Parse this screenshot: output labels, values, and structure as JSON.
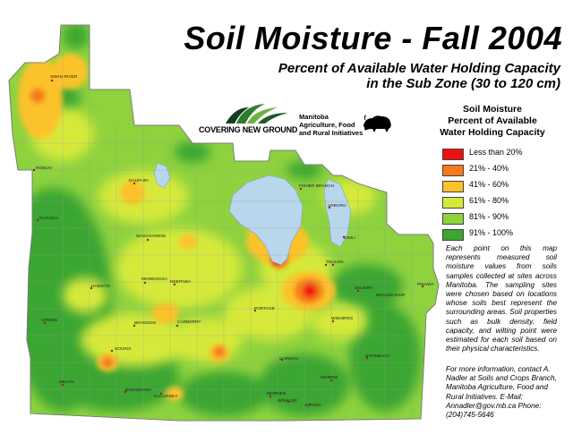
{
  "title": "Soil Moisture - Fall 2004",
  "subtitle_line1": "Percent of Available Water Holding Capacity",
  "subtitle_line2": "in the Sub Zone (30 to 120 cm)",
  "logos": {
    "covering_new_ground": "COVERING NEW GROUND",
    "manitoba_line1": "Manitoba",
    "manitoba_line2": "Agriculture, Food",
    "manitoba_line3": "and Rural Initiatives"
  },
  "legend": {
    "title_line1": "Soil Moisture",
    "title_line2": "Percent of Available",
    "title_line3": "Water Holding Capacity",
    "items": [
      {
        "label": "Less than 20%",
        "color": "#ee1111"
      },
      {
        "label": "21% - 40%",
        "color": "#f47a1c"
      },
      {
        "label": "41% - 60%",
        "color": "#fcc22a"
      },
      {
        "label": "61% - 80%",
        "color": "#d6e93a"
      },
      {
        "label": "81% - 90%",
        "color": "#8ed23e"
      },
      {
        "label": "91% - 100%",
        "color": "#3ba630"
      }
    ]
  },
  "note": "Each point on this map represents measured soil moisture values from soils samples collected at sites across Manitoba. The sampling sites were chosen based on locations whose soils best represent the surrounding areas. Soil properties such as bulk density, field capacity, and wilting point were estimated for each soil based on their physical characteristics.",
  "contact": "For more information, contact A. Nadler at Soils and Crops Branch, Manitoba Agriculture, Food and Rural Initiatives. E-Mail: Annadler@gov.mb.ca Phone: (204)745-5646",
  "towns": {
    "swan_river": "SWAN RIVER",
    "roblin": "ROBLIN",
    "dauphin": "DAUPHIN",
    "russell": "RUSSELL",
    "wasagaming": "WASAGAMING",
    "minnedosa": "MINNEDOSA",
    "neepawa": "NEEPAWA",
    "hamiota": "HAMIOTA",
    "virden": "VIRDEN",
    "brandon": "BRANDON",
    "carberry": "CARBERRY",
    "souris": "SOURIS",
    "melita": "MELITA",
    "boissevain": "BOISSEVAIN",
    "killarney": "KILLARNEY",
    "fisher_branch": "FISHER BRANCH",
    "arborg": "ARBORG",
    "gimli": "GIMLI",
    "selkirk": "SELKIRK",
    "portage": "PORTAGE",
    "winnipeg": "WINNIPEG",
    "beausejour": "BEAUSEJOUR",
    "carman": "CARMAN",
    "morris": "MORRIS",
    "steinbach": "STEINBACH",
    "morden": "MORDEN",
    "winkler": "WINKLER",
    "altona": "ALTONA",
    "teulon": "TEULON",
    "pinawa": "PINAWA"
  }
}
